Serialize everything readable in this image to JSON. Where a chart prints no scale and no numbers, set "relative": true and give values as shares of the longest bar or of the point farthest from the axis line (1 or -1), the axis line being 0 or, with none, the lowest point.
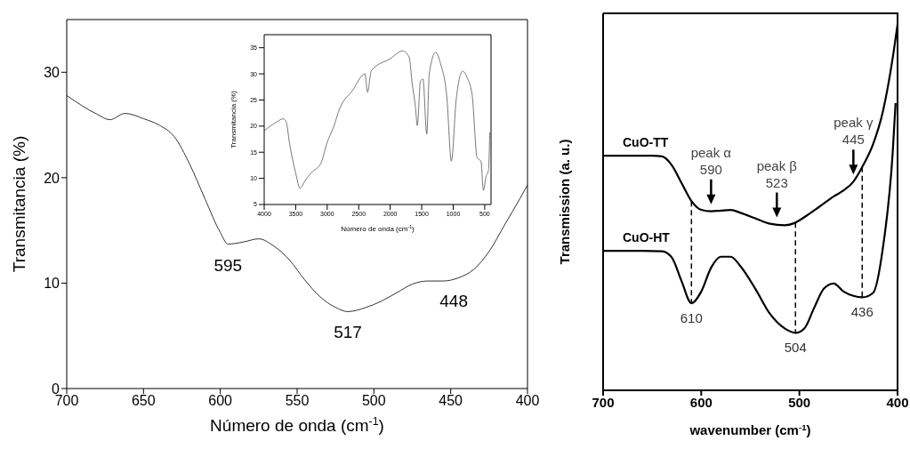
{
  "chart_data": [
    {
      "type": "line",
      "xlabel": "Número de onda (cm$^{-1}$)",
      "ylabel": "Transmitancia (%)",
      "xlim": [
        700,
        400
      ],
      "xticks": [
        700,
        650,
        600,
        550,
        500,
        450,
        400
      ],
      "ylim": [
        0,
        35
      ],
      "yticks": [
        0,
        10,
        20,
        30
      ],
      "series": [
        {
          "color": "#333333",
          "x": [
            700,
            680,
            672,
            662,
            650,
            640,
            630,
            620,
            610,
            600,
            595,
            585,
            575,
            565,
            555,
            545,
            535,
            525,
            517,
            505,
            495,
            485,
            475,
            465,
            455,
            445,
            435,
            425,
            415,
            405,
            400
          ],
          "values": [
            27.8,
            26.0,
            25.5,
            26.1,
            25.6,
            25.0,
            23.9,
            21.3,
            18.0,
            14.8,
            13.7,
            13.9,
            14.2,
            13.5,
            12.2,
            10.3,
            8.7,
            7.7,
            7.3,
            7.7,
            8.3,
            9.1,
            9.9,
            10.2,
            10.2,
            10.5,
            11.3,
            13.0,
            15.5,
            18.0,
            19.3
          ]
        }
      ],
      "annotations": [
        {
          "text": "595",
          "x": 595,
          "y": 13.7
        },
        {
          "text": "517",
          "x": 517,
          "y": 7.3
        },
        {
          "text": "448",
          "x": 448,
          "y": 10.3
        }
      ]
    },
    {
      "type": "line",
      "xlabel": "Número de onda (cm$^{-1}$)",
      "ylabel": "Transmitancia (%)",
      "xlim": [
        4000,
        400
      ],
      "xticks": [
        4000,
        3500,
        3000,
        2500,
        2000,
        1500,
        1000,
        500
      ],
      "ylim": [
        5,
        37.5
      ],
      "yticks": [
        5,
        10,
        15,
        20,
        25,
        30,
        35
      ],
      "series": [
        {
          "color": "#555555",
          "x": [
            4000,
            3800,
            3700,
            3650,
            3600,
            3500,
            3430,
            3350,
            3250,
            3100,
            3000,
            2900,
            2800,
            2600,
            2400,
            2360,
            2300,
            2000,
            1800,
            1700,
            1650,
            1600,
            1570,
            1520,
            1480,
            1420,
            1380,
            1280,
            1200,
            1100,
            1030,
            950,
            850,
            780,
            700,
            620,
            560,
            520,
            480,
            440,
            420
          ],
          "values": [
            19.1,
            20.8,
            21.4,
            20.8,
            16.9,
            11.0,
            8.1,
            9.6,
            11.1,
            12.9,
            16.9,
            19.8,
            23.4,
            26.8,
            30.0,
            26.5,
            30.6,
            32.9,
            34.4,
            33.2,
            28.0,
            23.7,
            20.1,
            28.6,
            29.0,
            18.5,
            30.0,
            34.1,
            31.9,
            25.4,
            13.3,
            25.4,
            30.5,
            29.3,
            26.0,
            13.9,
            13.3,
            7.7,
            10.3,
            11.6,
            18.8
          ]
        }
      ]
    },
    {
      "type": "line",
      "relative": true,
      "xlabel": "wavenumber (cm$^{-1}$)",
      "ylabel": "Transmission (a. u.)",
      "xlim": [
        700,
        400
      ],
      "xticks": [
        700,
        600,
        500,
        400
      ],
      "series": [
        {
          "name": "CuO-TT",
          "color": "#000000",
          "x": [
            700,
            650,
            640,
            630,
            620,
            610,
            600,
            590,
            580,
            570,
            560,
            545,
            530,
            515,
            505,
            495,
            480,
            465,
            455,
            445,
            435,
            425,
            415,
            405,
            400
          ],
          "values": [
            0.641,
            0.641,
            0.639,
            0.615,
            0.566,
            0.517,
            0.493,
            0.489,
            0.491,
            0.493,
            0.485,
            0.47,
            0.455,
            0.451,
            0.457,
            0.473,
            0.501,
            0.53,
            0.546,
            0.57,
            0.615,
            0.672,
            0.761,
            0.907,
            1.0
          ]
        },
        {
          "name": "CuO-HT",
          "color": "#000000",
          "x": [
            700,
            660,
            640,
            630,
            620,
            610,
            600,
            590,
            580,
            570,
            560,
            545,
            530,
            515,
            504,
            495,
            485,
            475,
            465,
            455,
            445,
            436,
            425,
            415,
            405,
            402
          ],
          "values": [
            0.381,
            0.381,
            0.38,
            0.363,
            0.298,
            0.238,
            0.27,
            0.335,
            0.365,
            0.365,
            0.339,
            0.278,
            0.209,
            0.169,
            0.157,
            0.169,
            0.225,
            0.278,
            0.292,
            0.27,
            0.258,
            0.254,
            0.266,
            0.388,
            0.647,
            0.785
          ]
        }
      ],
      "ref_lines": [
        {
          "axis": "x",
          "value": 610,
          "label": "610",
          "line_style": "dashed"
        },
        {
          "axis": "x",
          "value": 504,
          "label": "504",
          "line_style": "dashed"
        },
        {
          "axis": "x",
          "value": 436,
          "label": "436",
          "line_style": "dashed"
        }
      ],
      "annotations": [
        {
          "text": "peak α\n590",
          "x": 590,
          "y": 0.489
        },
        {
          "text": "peak β\n523",
          "x": 523,
          "y": 0.453
        },
        {
          "text": "peak γ\n445",
          "x": 445,
          "y": 0.57
        }
      ]
    }
  ]
}
